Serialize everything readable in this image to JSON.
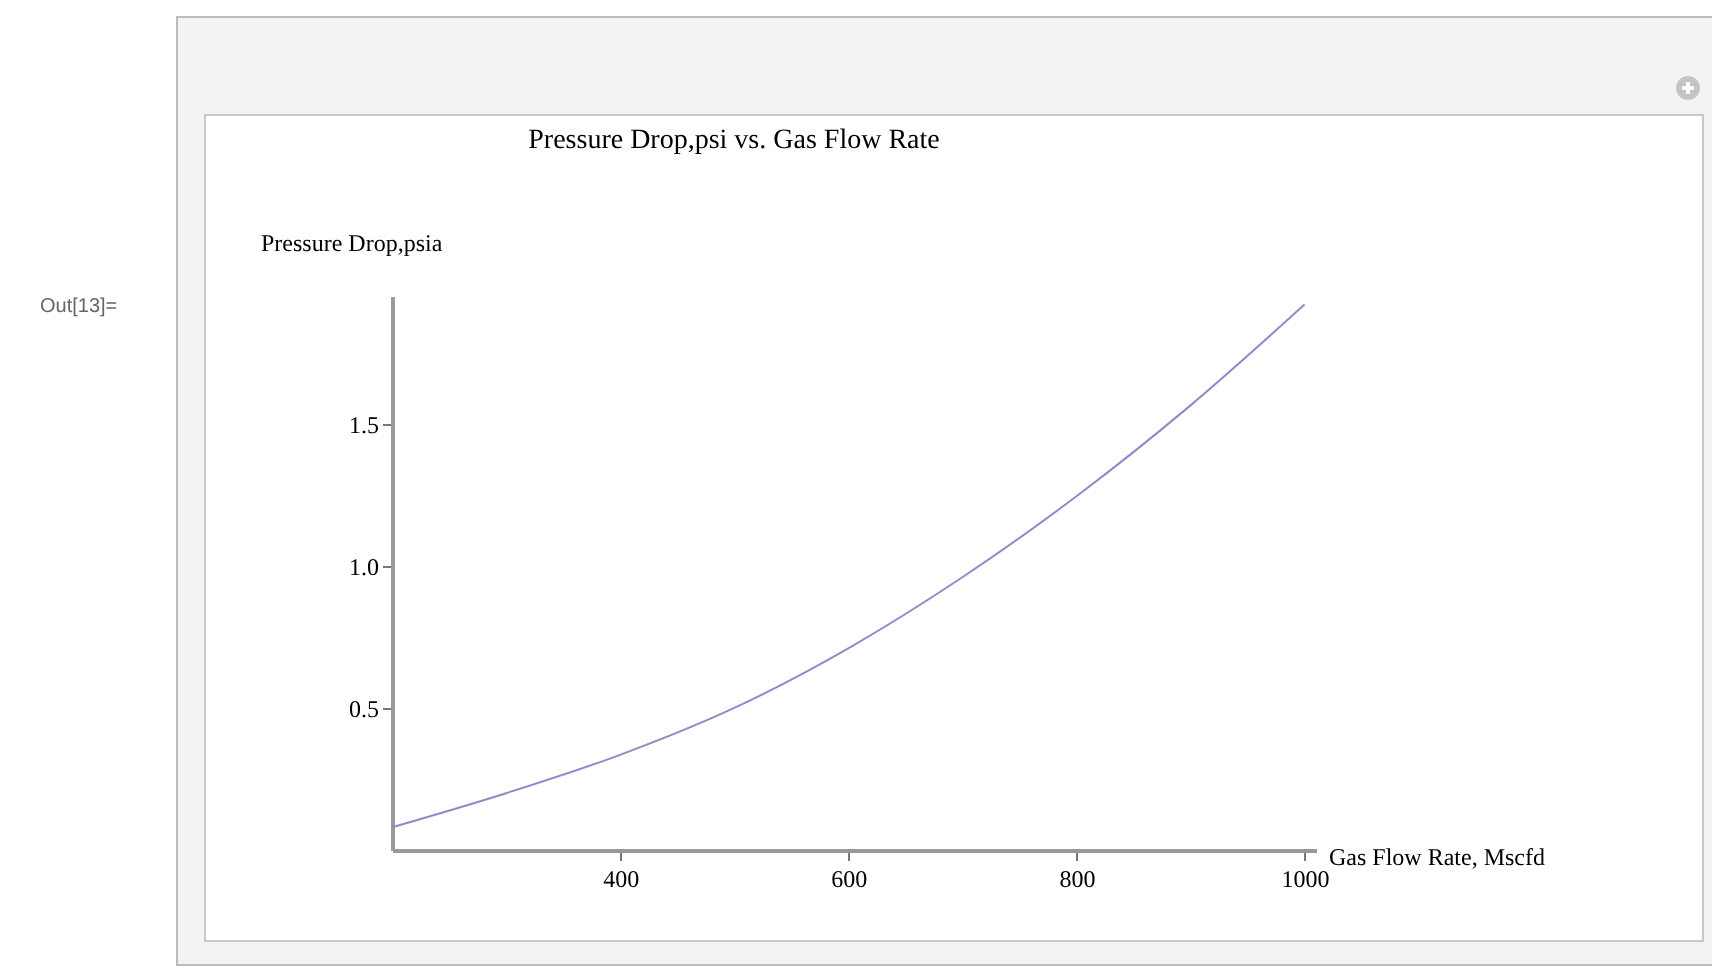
{
  "chart_data": {
    "type": "line",
    "title": "Pressure Drop,psi vs. Gas Flow Rate",
    "xlabel": "Gas Flow Rate, Mscfd",
    "ylabel": "Pressure Drop,psia",
    "annotations": [
      "Out[13]="
    ],
    "x": [
      200,
      300,
      400,
      500,
      600,
      700,
      800,
      900,
      1000
    ],
    "series": [
      {
        "color": "#8c8cc8",
        "values": [
          0.08,
          0.2,
          0.335,
          0.5,
          0.71,
          0.96,
          1.245,
          1.565,
          1.92
        ]
      }
    ],
    "xlim": [
      200,
      1010
    ],
    "ylim": [
      0,
      1.95
    ],
    "xticks": [
      400,
      600,
      800,
      1000
    ],
    "yticks": [
      {
        "value": 0.5,
        "label": "0.5"
      },
      {
        "value": 1,
        "label": "1.0"
      },
      {
        "value": 1.5,
        "label": "1.5"
      }
    ],
    "grid": false,
    "legend": false,
    "marker": "none",
    "line_style": "solid"
  }
}
